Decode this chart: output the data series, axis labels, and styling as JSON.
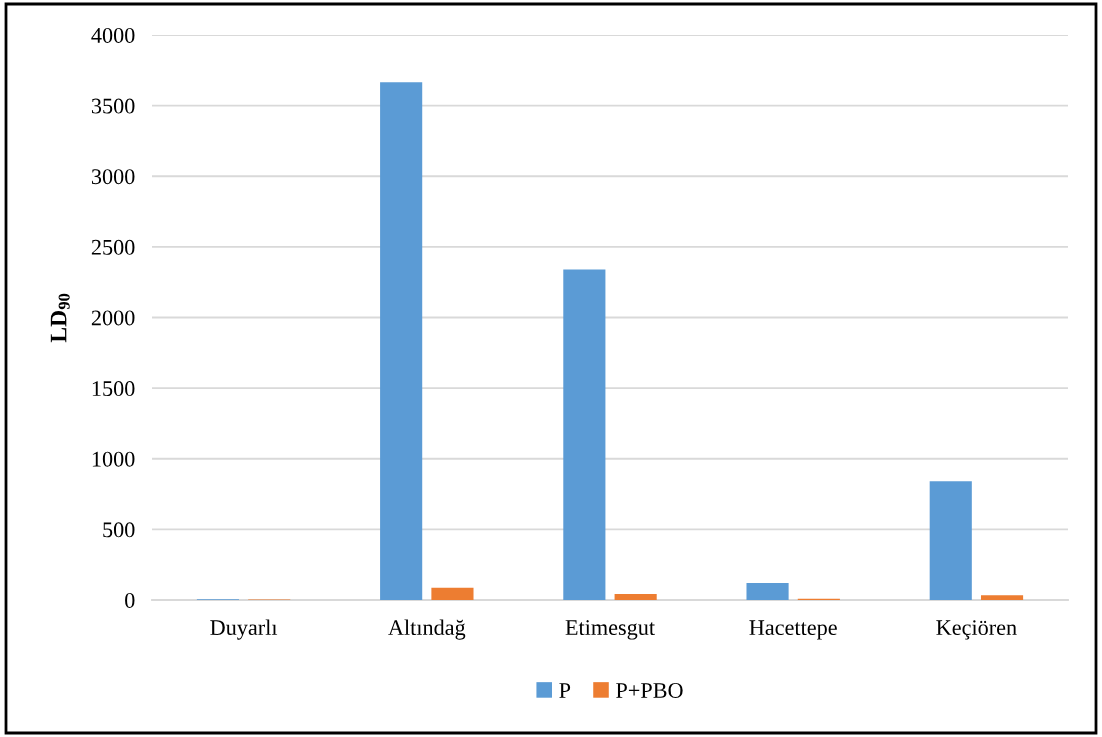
{
  "chart_data": {
    "type": "bar",
    "categories": [
      "Duyarlı",
      "Altındağ",
      "Etimesgut",
      "Hacettepe",
      "Keçiören"
    ],
    "series": [
      {
        "name": "P",
        "color": "#5b9bd5",
        "values": [
          5,
          3665,
          2340,
          120,
          840
        ]
      },
      {
        "name": "P+PBO",
        "color": "#ed7d31",
        "values": [
          4,
          86,
          42,
          8,
          33
        ]
      }
    ],
    "ylabel": "LD$_{90}$",
    "ylim": [
      0,
      4000
    ],
    "yticks": [
      0,
      500,
      1000,
      1500,
      2000,
      2500,
      3000,
      3500,
      4000
    ],
    "grid": "y",
    "legend": "bottom"
  }
}
